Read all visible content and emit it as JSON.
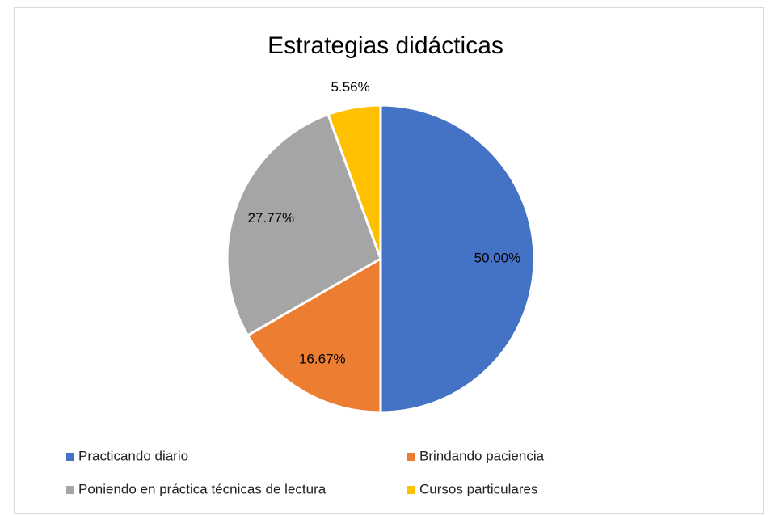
{
  "chart_data": {
    "type": "pie",
    "title": "Estrategias didácticas",
    "categories": [
      "Practicando diario",
      "Brindando paciencia",
      "Poniendo en práctica técnicas de lectura",
      "Cursos particulares"
    ],
    "values": [
      50,
      16.67,
      27.77,
      5.56
    ],
    "value_labels": [
      "50.00%",
      "16.67%",
      "27.77%",
      "5.56%"
    ],
    "colors": [
      "#4472c4",
      "#ed7d31",
      "#a5a5a5",
      "#ffc000"
    ],
    "legend": "bottom"
  }
}
